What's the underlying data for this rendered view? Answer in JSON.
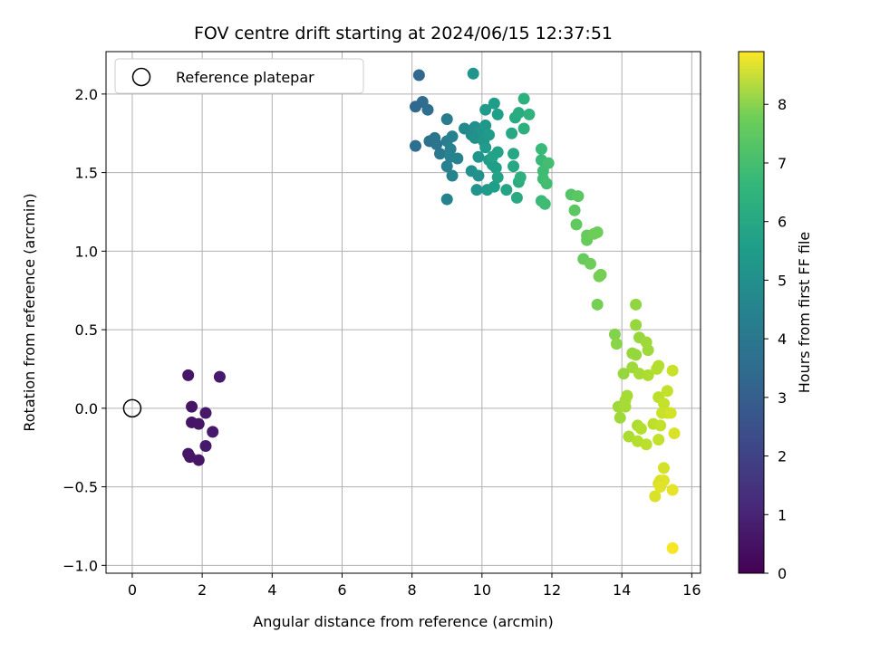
{
  "chart_data": {
    "type": "scatter",
    "title": "FOV centre drift starting at 2024/06/15 12:37:51",
    "xlabel": "Angular distance from reference (arcmin)",
    "ylabel": "Rotation from reference (arcmin)",
    "colorbar_label": "Hours from first FF file",
    "colormap": "viridis",
    "xlim": [
      -0.75,
      16.25
    ],
    "ylim": [
      -1.05,
      2.27
    ],
    "clim": [
      0,
      8.9
    ],
    "x_ticks": [
      "0",
      "2",
      "4",
      "6",
      "8",
      "10",
      "12",
      "14",
      "16"
    ],
    "y_ticks": [
      "−1.0",
      "−0.5",
      "0.0",
      "0.5",
      "1.0",
      "1.5",
      "2.0"
    ],
    "c_ticks": [
      "0",
      "1",
      "2",
      "3",
      "4",
      "5",
      "6",
      "7",
      "8"
    ],
    "grid": true,
    "legend": {
      "position": "top-left",
      "label": "Reference platepar"
    },
    "reference_point": {
      "x": 0,
      "y": 0
    },
    "points": [
      {
        "x": 1.6,
        "y": 0.21,
        "c": 0.5
      },
      {
        "x": 2.5,
        "y": 0.2,
        "c": 0.6
      },
      {
        "x": 1.7,
        "y": 0.01,
        "c": 0.5
      },
      {
        "x": 2.1,
        "y": -0.03,
        "c": 0.6
      },
      {
        "x": 1.7,
        "y": -0.09,
        "c": 0.5
      },
      {
        "x": 1.9,
        "y": -0.1,
        "c": 0.5
      },
      {
        "x": 2.3,
        "y": -0.15,
        "c": 0.6
      },
      {
        "x": 2.1,
        "y": -0.24,
        "c": 0.6
      },
      {
        "x": 1.6,
        "y": -0.29,
        "c": 0.5
      },
      {
        "x": 1.65,
        "y": -0.31,
        "c": 0.5
      },
      {
        "x": 1.9,
        "y": -0.33,
        "c": 0.5
      },
      {
        "x": 8.2,
        "y": 2.12,
        "c": 3.0
      },
      {
        "x": 8.3,
        "y": 1.95,
        "c": 3.1
      },
      {
        "x": 8.1,
        "y": 1.92,
        "c": 3.0
      },
      {
        "x": 8.45,
        "y": 1.9,
        "c": 3.2
      },
      {
        "x": 8.1,
        "y": 1.67,
        "c": 3.2
      },
      {
        "x": 8.5,
        "y": 1.7,
        "c": 3.3
      },
      {
        "x": 8.65,
        "y": 1.72,
        "c": 3.4
      },
      {
        "x": 8.7,
        "y": 1.68,
        "c": 3.5
      },
      {
        "x": 8.8,
        "y": 1.62,
        "c": 3.6
      },
      {
        "x": 9.0,
        "y": 1.84,
        "c": 3.7
      },
      {
        "x": 9.0,
        "y": 1.7,
        "c": 3.8
      },
      {
        "x": 9.15,
        "y": 1.73,
        "c": 3.9
      },
      {
        "x": 9.1,
        "y": 1.65,
        "c": 3.9
      },
      {
        "x": 9.1,
        "y": 1.6,
        "c": 4.0
      },
      {
        "x": 9.3,
        "y": 1.59,
        "c": 4.0
      },
      {
        "x": 9.0,
        "y": 1.54,
        "c": 3.9
      },
      {
        "x": 9.15,
        "y": 1.48,
        "c": 4.0
      },
      {
        "x": 9.0,
        "y": 1.33,
        "c": 4.0
      },
      {
        "x": 9.5,
        "y": 1.78,
        "c": 4.2
      },
      {
        "x": 9.75,
        "y": 2.13,
        "c": 4.6
      },
      {
        "x": 9.7,
        "y": 1.74,
        "c": 4.3
      },
      {
        "x": 9.8,
        "y": 1.79,
        "c": 4.4
      },
      {
        "x": 9.8,
        "y": 1.72,
        "c": 4.5
      },
      {
        "x": 9.9,
        "y": 1.77,
        "c": 4.5
      },
      {
        "x": 10.0,
        "y": 1.76,
        "c": 4.6
      },
      {
        "x": 10.1,
        "y": 1.8,
        "c": 4.7
      },
      {
        "x": 10.05,
        "y": 1.7,
        "c": 4.7
      },
      {
        "x": 10.2,
        "y": 1.74,
        "c": 4.8
      },
      {
        "x": 10.1,
        "y": 1.9,
        "c": 4.8
      },
      {
        "x": 10.35,
        "y": 1.94,
        "c": 4.9
      },
      {
        "x": 10.45,
        "y": 1.87,
        "c": 5.0
      },
      {
        "x": 9.9,
        "y": 1.6,
        "c": 4.6
      },
      {
        "x": 9.7,
        "y": 1.51,
        "c": 4.4
      },
      {
        "x": 9.9,
        "y": 1.48,
        "c": 4.5
      },
      {
        "x": 10.1,
        "y": 1.66,
        "c": 4.8
      },
      {
        "x": 10.2,
        "y": 1.58,
        "c": 4.9
      },
      {
        "x": 10.3,
        "y": 1.55,
        "c": 5.0
      },
      {
        "x": 10.4,
        "y": 1.53,
        "c": 5.0
      },
      {
        "x": 10.3,
        "y": 1.6,
        "c": 5.1
      },
      {
        "x": 10.45,
        "y": 1.63,
        "c": 5.1
      },
      {
        "x": 9.85,
        "y": 1.39,
        "c": 4.6
      },
      {
        "x": 10.15,
        "y": 1.39,
        "c": 4.8
      },
      {
        "x": 10.35,
        "y": 1.41,
        "c": 5.0
      },
      {
        "x": 10.45,
        "y": 1.47,
        "c": 5.1
      },
      {
        "x": 10.7,
        "y": 1.39,
        "c": 5.2
      },
      {
        "x": 10.9,
        "y": 1.62,
        "c": 5.3
      },
      {
        "x": 10.9,
        "y": 1.54,
        "c": 5.3
      },
      {
        "x": 10.85,
        "y": 1.75,
        "c": 5.3
      },
      {
        "x": 10.95,
        "y": 1.85,
        "c": 5.4
      },
      {
        "x": 11.05,
        "y": 1.88,
        "c": 5.5
      },
      {
        "x": 11.2,
        "y": 1.97,
        "c": 5.6
      },
      {
        "x": 11.2,
        "y": 1.78,
        "c": 5.6
      },
      {
        "x": 11.35,
        "y": 1.87,
        "c": 5.7
      },
      {
        "x": 11.0,
        "y": 1.34,
        "c": 5.4
      },
      {
        "x": 11.05,
        "y": 1.44,
        "c": 5.5
      },
      {
        "x": 11.1,
        "y": 1.47,
        "c": 5.6
      },
      {
        "x": 11.7,
        "y": 1.65,
        "c": 6.0
      },
      {
        "x": 11.7,
        "y": 1.58,
        "c": 6.0
      },
      {
        "x": 11.75,
        "y": 1.51,
        "c": 6.1
      },
      {
        "x": 11.9,
        "y": 1.56,
        "c": 6.2
      },
      {
        "x": 11.75,
        "y": 1.46,
        "c": 6.1
      },
      {
        "x": 11.85,
        "y": 1.43,
        "c": 6.2
      },
      {
        "x": 11.7,
        "y": 1.32,
        "c": 6.0
      },
      {
        "x": 11.8,
        "y": 1.3,
        "c": 6.1
      },
      {
        "x": 12.55,
        "y": 1.36,
        "c": 6.5
      },
      {
        "x": 12.75,
        "y": 1.35,
        "c": 6.6
      },
      {
        "x": 12.65,
        "y": 1.26,
        "c": 6.6
      },
      {
        "x": 12.7,
        "y": 1.17,
        "c": 6.7
      },
      {
        "x": 13.0,
        "y": 1.1,
        "c": 6.8
      },
      {
        "x": 13.0,
        "y": 1.07,
        "c": 6.8
      },
      {
        "x": 13.2,
        "y": 1.11,
        "c": 6.9
      },
      {
        "x": 13.3,
        "y": 1.12,
        "c": 6.9
      },
      {
        "x": 12.9,
        "y": 0.95,
        "c": 6.8
      },
      {
        "x": 13.1,
        "y": 0.92,
        "c": 6.9
      },
      {
        "x": 13.35,
        "y": 0.84,
        "c": 7.0
      },
      {
        "x": 13.4,
        "y": 0.85,
        "c": 7.0
      },
      {
        "x": 13.3,
        "y": 0.66,
        "c": 7.0
      },
      {
        "x": 13.8,
        "y": 0.47,
        "c": 7.2
      },
      {
        "x": 13.85,
        "y": 0.41,
        "c": 7.3
      },
      {
        "x": 14.4,
        "y": 0.66,
        "c": 7.4
      },
      {
        "x": 14.4,
        "y": 0.53,
        "c": 7.5
      },
      {
        "x": 14.5,
        "y": 0.45,
        "c": 7.5
      },
      {
        "x": 14.7,
        "y": 0.42,
        "c": 7.6
      },
      {
        "x": 14.75,
        "y": 0.37,
        "c": 7.6
      },
      {
        "x": 14.3,
        "y": 0.35,
        "c": 7.5
      },
      {
        "x": 14.4,
        "y": 0.34,
        "c": 7.5
      },
      {
        "x": 14.3,
        "y": 0.26,
        "c": 7.6
      },
      {
        "x": 14.05,
        "y": 0.22,
        "c": 7.5
      },
      {
        "x": 14.5,
        "y": 0.22,
        "c": 7.7
      },
      {
        "x": 14.75,
        "y": 0.21,
        "c": 7.8
      },
      {
        "x": 15.0,
        "y": 0.25,
        "c": 7.9
      },
      {
        "x": 15.05,
        "y": 0.27,
        "c": 7.9
      },
      {
        "x": 15.45,
        "y": 0.24,
        "c": 8.2
      },
      {
        "x": 14.15,
        "y": 0.08,
        "c": 7.7
      },
      {
        "x": 14.1,
        "y": 0.05,
        "c": 7.7
      },
      {
        "x": 13.9,
        "y": 0.01,
        "c": 7.6
      },
      {
        "x": 14.1,
        "y": 0.01,
        "c": 7.7
      },
      {
        "x": 13.95,
        "y": -0.06,
        "c": 7.6
      },
      {
        "x": 15.05,
        "y": 0.07,
        "c": 8.0
      },
      {
        "x": 15.3,
        "y": 0.11,
        "c": 8.1
      },
      {
        "x": 15.2,
        "y": 0.03,
        "c": 8.1
      },
      {
        "x": 15.15,
        "y": -0.03,
        "c": 8.2
      },
      {
        "x": 15.3,
        "y": -0.03,
        "c": 8.2
      },
      {
        "x": 15.4,
        "y": -0.03,
        "c": 8.3
      },
      {
        "x": 14.45,
        "y": -0.11,
        "c": 7.8
      },
      {
        "x": 14.55,
        "y": -0.13,
        "c": 7.9
      },
      {
        "x": 14.9,
        "y": -0.1,
        "c": 8.0
      },
      {
        "x": 15.1,
        "y": -0.11,
        "c": 8.1
      },
      {
        "x": 14.2,
        "y": -0.18,
        "c": 7.8
      },
      {
        "x": 14.45,
        "y": -0.21,
        "c": 7.9
      },
      {
        "x": 14.7,
        "y": -0.23,
        "c": 8.0
      },
      {
        "x": 15.05,
        "y": -0.2,
        "c": 8.1
      },
      {
        "x": 15.5,
        "y": -0.16,
        "c": 8.4
      },
      {
        "x": 15.2,
        "y": -0.38,
        "c": 8.3
      },
      {
        "x": 15.1,
        "y": -0.46,
        "c": 8.4
      },
      {
        "x": 15.2,
        "y": -0.46,
        "c": 8.5
      },
      {
        "x": 15.05,
        "y": -0.48,
        "c": 8.4
      },
      {
        "x": 15.1,
        "y": -0.5,
        "c": 8.5
      },
      {
        "x": 15.45,
        "y": -0.52,
        "c": 8.6
      },
      {
        "x": 14.95,
        "y": -0.56,
        "c": 8.4
      },
      {
        "x": 15.45,
        "y": -0.89,
        "c": 8.8
      }
    ]
  }
}
